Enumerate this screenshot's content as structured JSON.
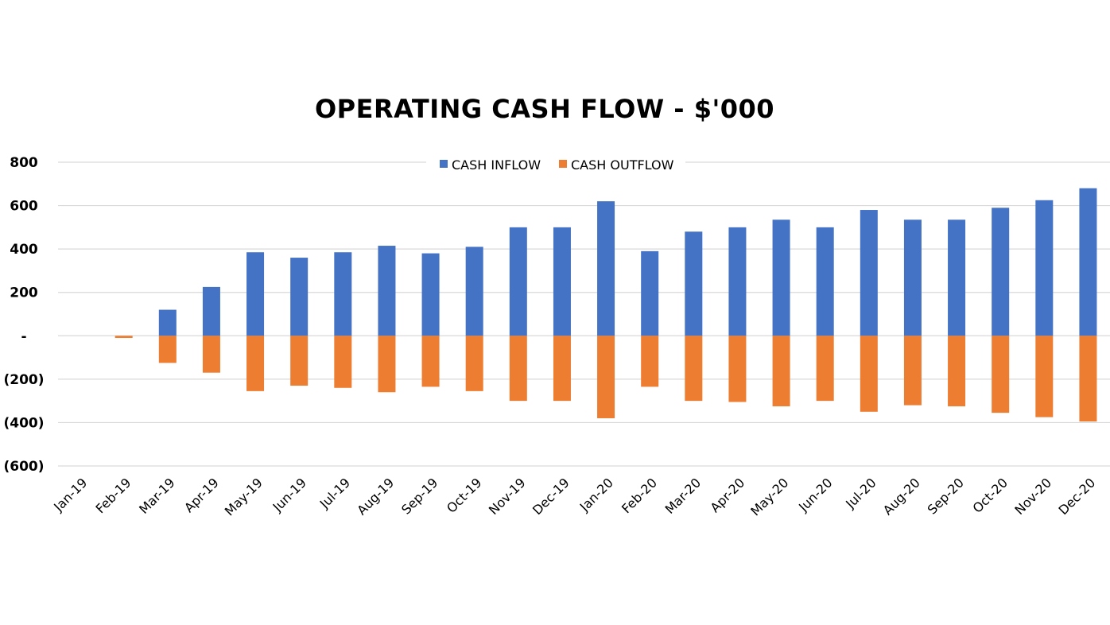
{
  "chart_data": {
    "type": "bar",
    "title": "OPERATING CASH FLOW - $'000",
    "xlabel": "",
    "ylabel": "",
    "ylim": [
      -600,
      800
    ],
    "yticks": [
      800,
      600,
      400,
      200,
      0,
      -200,
      -400,
      -600
    ],
    "ytick_labels": [
      "800",
      "600",
      "400",
      "200",
      "-",
      "(200)",
      "(400)",
      "(600)"
    ],
    "grid": true,
    "legend": "top-center",
    "categories": [
      "Jan-19",
      "Feb-19",
      "Mar-19",
      "Apr-19",
      "May-19",
      "Jun-19",
      "Jul-19",
      "Aug-19",
      "Sep-19",
      "Oct-19",
      "Nov-19",
      "Dec-19",
      "Jan-20",
      "Feb-20",
      "Mar-20",
      "Apr-20",
      "May-20",
      "Jun-20",
      "Jul-20",
      "Aug-20",
      "Sep-20",
      "Oct-20",
      "Nov-20",
      "Dec-20"
    ],
    "series": [
      {
        "name": "CASH INFLOW",
        "color": "#4472C4",
        "values": [
          0,
          0,
          120,
          225,
          385,
          360,
          385,
          415,
          380,
          410,
          500,
          500,
          620,
          390,
          480,
          500,
          535,
          500,
          580,
          535,
          535,
          590,
          625,
          680
        ]
      },
      {
        "name": "CASH OUTFLOW",
        "color": "#ED7D31",
        "values": [
          0,
          -10,
          -125,
          -170,
          -255,
          -230,
          -240,
          -260,
          -235,
          -255,
          -300,
          -300,
          -380,
          -235,
          -300,
          -305,
          -325,
          -300,
          -350,
          -320,
          -325,
          -355,
          -375,
          -395
        ]
      }
    ]
  }
}
